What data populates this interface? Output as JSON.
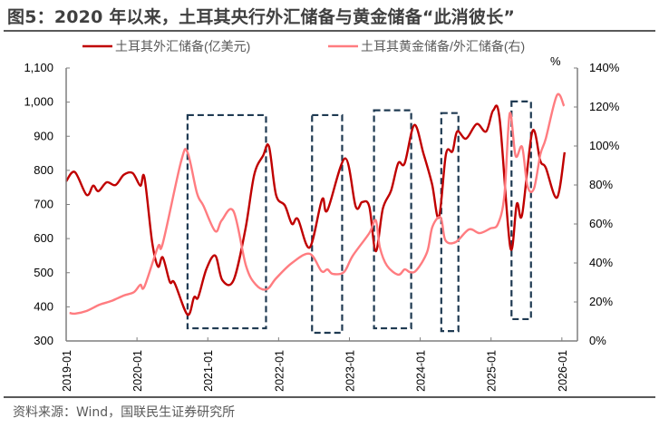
{
  "title": "图5：2020 年以来，土耳其央行外汇储备与黄金储备“此消彼长”",
  "source": "资料来源：Wind，国联民生证券研究所",
  "chart_data": {
    "type": "line",
    "title": "图5：2020 年以来，土耳其央行外汇储备与黄金储备“此消彼长”",
    "legend_position": "top",
    "grid": false,
    "x_ticks": [
      "2019-01",
      "2020-01",
      "2021-01",
      "2022-01",
      "2023-01",
      "2024-01",
      "2025-01",
      "2026-01"
    ],
    "y_left": {
      "ticks": [
        "300",
        "400",
        "500",
        "600",
        "700",
        "800",
        "900",
        "1,000",
        "1,100"
      ],
      "lim": [
        300,
        1100
      ]
    },
    "y_right": {
      "unit_label": "%",
      "ticks": [
        "0%",
        "20%",
        "40%",
        "60%",
        "80%",
        "100%",
        "120%",
        "140%"
      ],
      "lim": [
        0,
        140
      ]
    },
    "series": [
      {
        "name": "土耳其外汇储备(亿美元)",
        "axis": "left",
        "color": "#C00000",
        "points": [
          [
            "2019-01-01",
            768
          ],
          [
            "2019-02-15",
            795
          ],
          [
            "2019-04-15",
            728
          ],
          [
            "2019-05-18",
            755
          ],
          [
            "2019-06-15",
            739
          ],
          [
            "2019-07-27",
            765
          ],
          [
            "2019-09-12",
            757
          ],
          [
            "2019-10-24",
            787
          ],
          [
            "2019-12-09",
            792
          ],
          [
            "2020-01-18",
            755
          ],
          [
            "2020-02-09",
            779
          ],
          [
            "2020-03-18",
            590
          ],
          [
            "2020-04-18",
            518
          ],
          [
            "2020-05-12",
            545
          ],
          [
            "2020-06-18",
            473
          ],
          [
            "2020-07-12",
            470
          ],
          [
            "2020-09-18",
            377
          ],
          [
            "2020-10-21",
            428
          ],
          [
            "2020-11-12",
            428
          ],
          [
            "2020-12-24",
            511
          ],
          [
            "2021-02-09",
            550
          ],
          [
            "2021-03-15",
            478
          ],
          [
            "2021-05-12",
            478
          ],
          [
            "2021-07-12",
            627
          ],
          [
            "2021-08-27",
            787
          ],
          [
            "2021-10-12",
            843
          ],
          [
            "2021-11-12",
            870
          ],
          [
            "2021-12-18",
            728
          ],
          [
            "2022-02-03",
            697
          ],
          [
            "2022-03-09",
            643
          ],
          [
            "2022-04-09",
            657
          ],
          [
            "2022-06-09",
            574
          ],
          [
            "2022-08-12",
            715
          ],
          [
            "2022-09-09",
            683
          ],
          [
            "2022-12-09",
            835
          ],
          [
            "2023-02-03",
            694
          ],
          [
            "2023-03-06",
            707
          ],
          [
            "2023-04-12",
            694
          ],
          [
            "2023-05-15",
            563
          ],
          [
            "2023-06-21",
            688
          ],
          [
            "2023-08-03",
            741
          ],
          [
            "2023-09-09",
            821
          ],
          [
            "2023-10-12",
            821
          ],
          [
            "2023-12-01",
            933
          ],
          [
            "2024-01-18",
            848
          ],
          [
            "2024-03-01",
            760
          ],
          [
            "2024-04-06",
            662
          ],
          [
            "2024-05-12",
            848
          ],
          [
            "2024-06-15",
            856
          ],
          [
            "2024-07-09",
            914
          ],
          [
            "2024-08-24",
            893
          ],
          [
            "2024-10-18",
            936
          ],
          [
            "2024-12-06",
            914
          ],
          [
            "2025-01-12",
            976
          ],
          [
            "2025-02-15",
            949
          ],
          [
            "2025-04-09",
            574
          ],
          [
            "2025-05-12",
            702
          ],
          [
            "2025-06-09",
            670
          ],
          [
            "2025-08-01",
            914
          ],
          [
            "2025-09-12",
            827
          ],
          [
            "2025-10-09",
            808
          ],
          [
            "2025-12-06",
            720
          ],
          [
            "2026-01-15",
            853
          ]
        ]
      },
      {
        "name": "土耳其黄金储备/外汇储备(右)",
        "axis": "right",
        "color": "#FF7C80",
        "points": [
          [
            "2019-01-18",
            14.4
          ],
          [
            "2019-02-15",
            14.0
          ],
          [
            "2019-04-12",
            15.3
          ],
          [
            "2019-06-21",
            18.6
          ],
          [
            "2019-08-21",
            20.5
          ],
          [
            "2019-10-24",
            23.3
          ],
          [
            "2019-12-15",
            25.0
          ],
          [
            "2020-01-18",
            28.8
          ],
          [
            "2020-02-09",
            27.9
          ],
          [
            "2020-04-18",
            48.4
          ],
          [
            "2020-05-12",
            50.0
          ],
          [
            "2020-08-15",
            92.0
          ],
          [
            "2020-09-18",
            96.7
          ],
          [
            "2020-11-06",
            75.8
          ],
          [
            "2020-12-09",
            69.3
          ],
          [
            "2021-02-09",
            56.3
          ],
          [
            "2021-03-12",
            61.9
          ],
          [
            "2021-05-12",
            66.5
          ],
          [
            "2021-07-15",
            38.6
          ],
          [
            "2021-09-06",
            28.8
          ],
          [
            "2021-11-01",
            26.5
          ],
          [
            "2021-12-18",
            32.1
          ],
          [
            "2022-03-09",
            40.0
          ],
          [
            "2022-06-09",
            44.7
          ],
          [
            "2022-08-09",
            35.8
          ],
          [
            "2022-09-09",
            36.7
          ],
          [
            "2022-10-06",
            34.4
          ],
          [
            "2022-12-03",
            35.3
          ],
          [
            "2023-01-18",
            43.7
          ],
          [
            "2023-04-12",
            55.3
          ],
          [
            "2023-05-15",
            61.9
          ],
          [
            "2023-06-06",
            47.9
          ],
          [
            "2023-07-12",
            38.6
          ],
          [
            "2023-09-09",
            34.0
          ],
          [
            "2023-10-12",
            36.7
          ],
          [
            "2023-11-09",
            35.3
          ],
          [
            "2023-12-12",
            36.3
          ],
          [
            "2024-02-06",
            45.6
          ],
          [
            "2024-03-03",
            58.6
          ],
          [
            "2024-04-15",
            63.3
          ],
          [
            "2024-05-09",
            51.6
          ],
          [
            "2024-07-01",
            50.7
          ],
          [
            "2024-09-09",
            57.2
          ],
          [
            "2024-11-03",
            55.3
          ],
          [
            "2024-12-27",
            57.7
          ],
          [
            "2025-02-06",
            60.0
          ],
          [
            "2025-03-09",
            74.9
          ],
          [
            "2025-04-06",
            116.7
          ],
          [
            "2025-05-06",
            94.9
          ],
          [
            "2025-06-09",
            99.5
          ],
          [
            "2025-07-06",
            79.5
          ],
          [
            "2025-08-09",
            78.1
          ],
          [
            "2025-09-12",
            95.8
          ],
          [
            "2025-10-09",
            103.7
          ],
          [
            "2025-12-06",
            126.0
          ],
          [
            "2026-01-12",
            120.5
          ]
        ]
      }
    ],
    "highlight_periods": {
      "style": "dashed-box",
      "color": "#1F3A52",
      "boxes": [
        {
          "start": "2020-09-18",
          "end": "2021-10-27",
          "low": 337,
          "high": 962
        },
        {
          "start": "2022-06-21",
          "end": "2022-11-24",
          "low": 324,
          "high": 962
        },
        {
          "start": "2023-05-06",
          "end": "2023-11-15",
          "low": 337,
          "high": 976
        },
        {
          "start": "2024-04-18",
          "end": "2024-07-15",
          "low": 329,
          "high": 968
        },
        {
          "start": "2025-04-15",
          "end": "2025-07-24",
          "low": 364,
          "high": 1002
        }
      ]
    }
  }
}
